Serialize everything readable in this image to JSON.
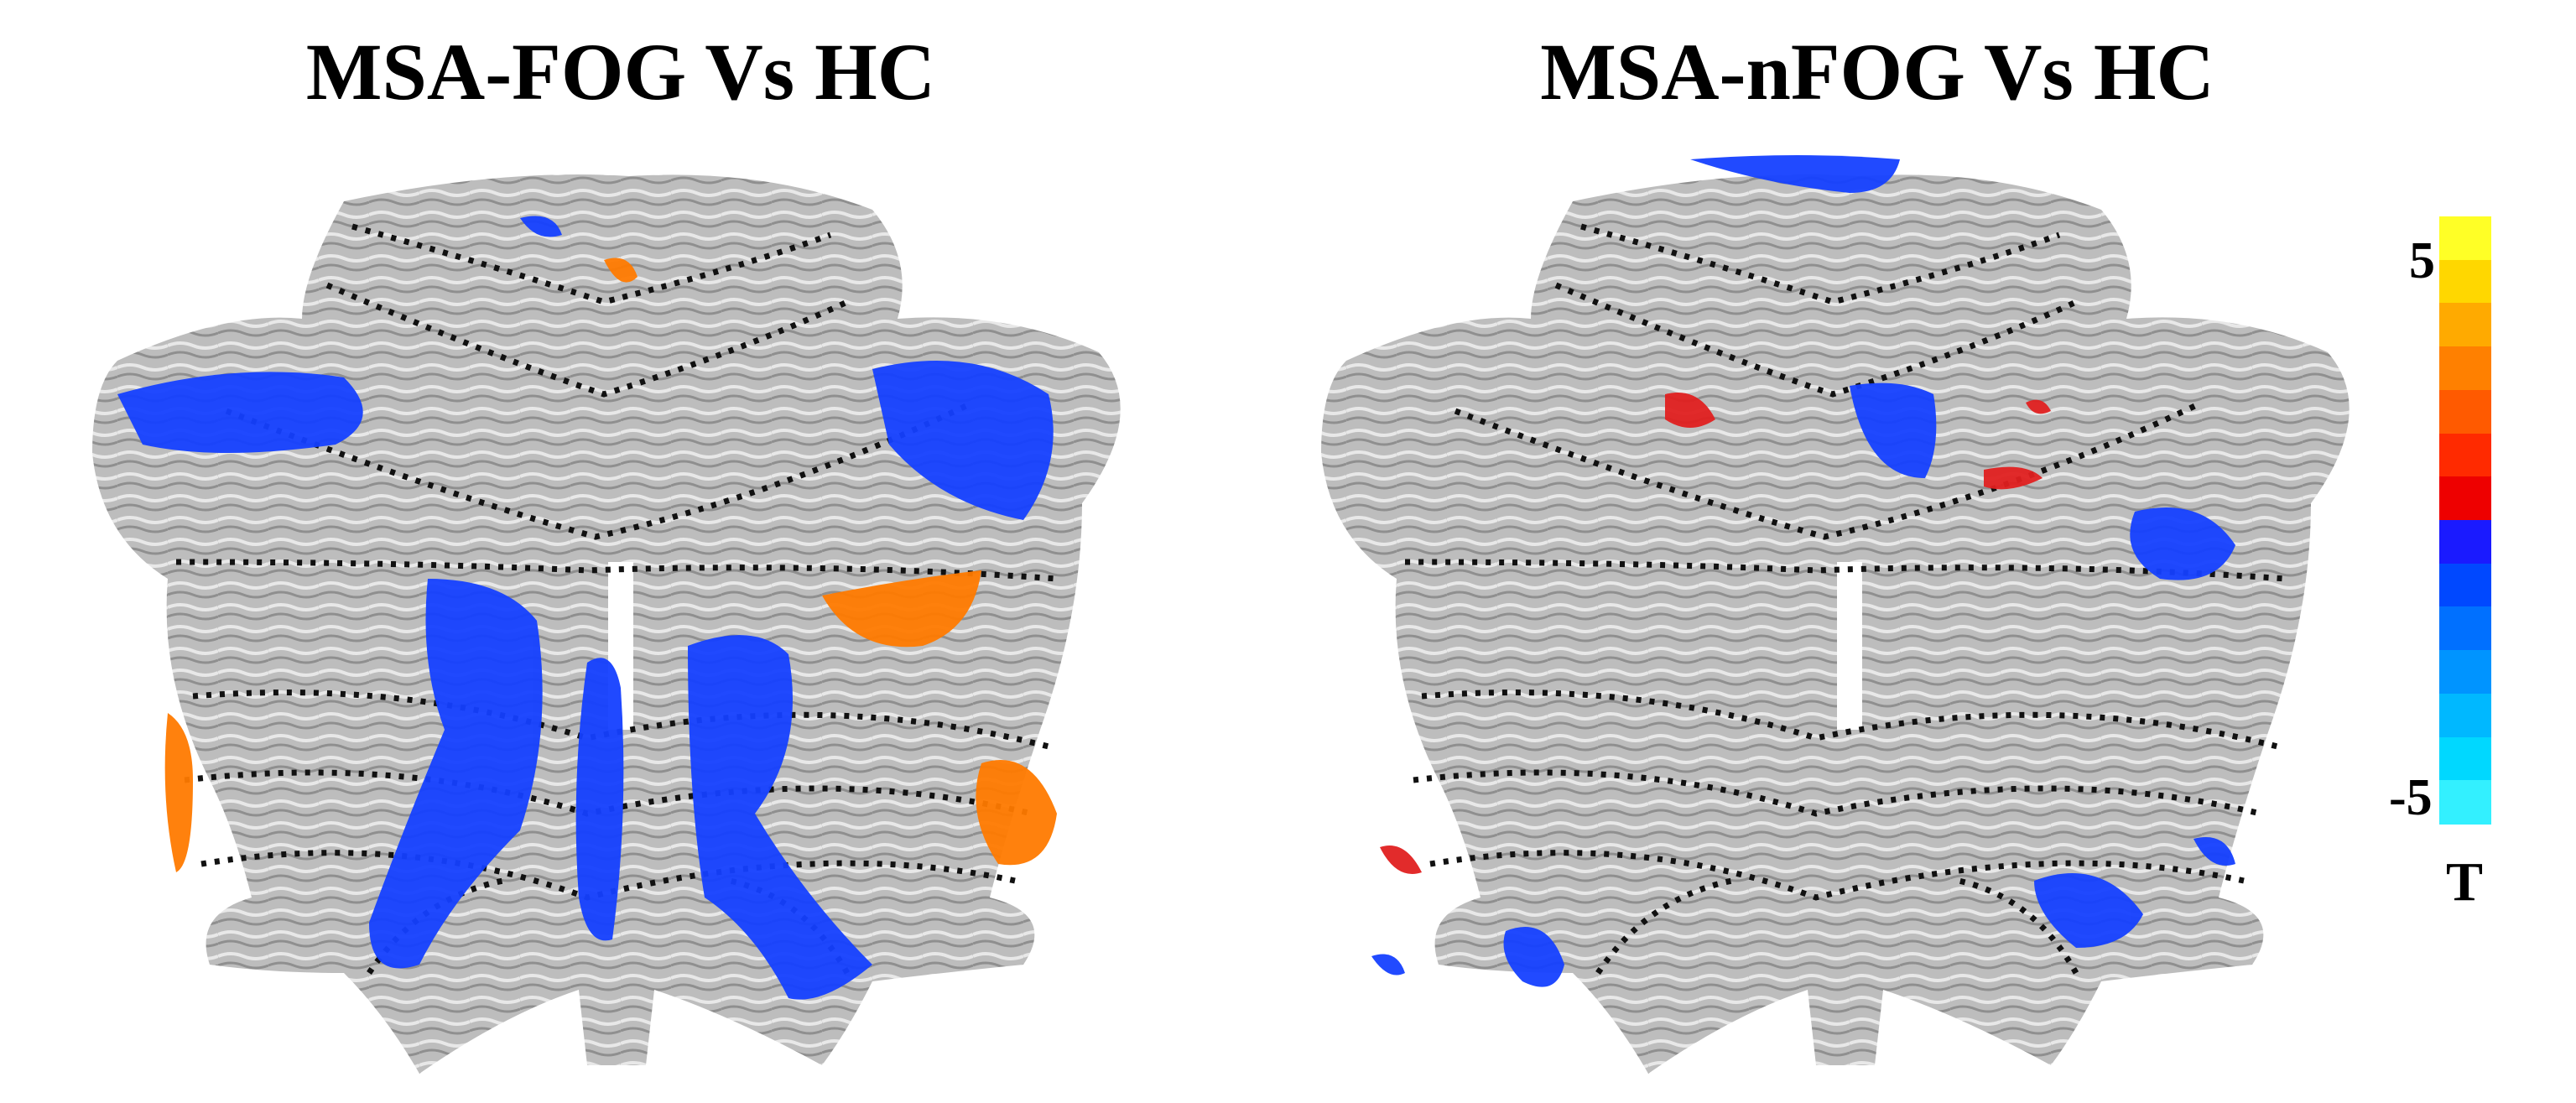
{
  "panels": [
    {
      "title": "MSA-FOG Vs HC"
    },
    {
      "title": "MSA-nFOG Vs HC"
    }
  ],
  "colorbar": {
    "max_label": "5",
    "min_label": "-5",
    "unit_label": "T",
    "colors": [
      "#ffff26",
      "#ffd700",
      "#ffaa00",
      "#ff8000",
      "#ff5a00",
      "#ff2a00",
      "#ee0000",
      "#1a1aff",
      "#0048ff",
      "#0070ff",
      "#0094ff",
      "#00b8ff",
      "#00d8ff",
      "#33f0ff"
    ]
  },
  "colors": {
    "positive": "#ff7a00",
    "negative": "#1540ff",
    "cortex": "#bdbdbd",
    "boundary": "#111111"
  }
}
